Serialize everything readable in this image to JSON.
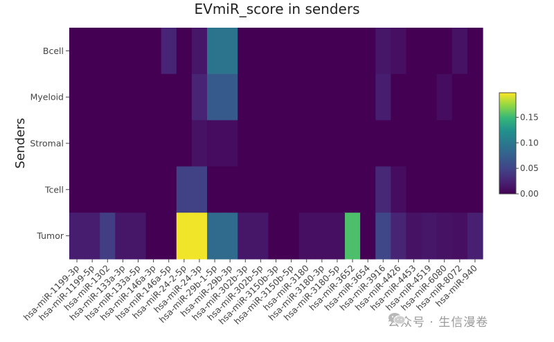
{
  "chart_data": {
    "type": "heatmap",
    "title": "EVmiR_score in senders",
    "ylabel": "Senders",
    "xlabel": "",
    "x_categories": [
      "hsa-miR-1199-3p",
      "hsa-miR-1199-5p",
      "hsa-miR-1302",
      "hsa-miR-133a-3p",
      "hsa-miR-133a-5p",
      "hsa-miR-146a-3p",
      "hsa-miR-146a-5p",
      "hsa-miR-24-2-5p",
      "hsa-miR-24-3p",
      "hsa-miR-29b-1-5p",
      "hsa-miR-29b-3p",
      "hsa-miR-302b-3p",
      "hsa-miR-302b-5p",
      "hsa-miR-3150b-3p",
      "hsa-miR-3150b-5p",
      "hsa-miR-3180",
      "hsa-miR-3180-3p",
      "hsa-miR-3180-5p",
      "hsa-miR-3652",
      "hsa-miR-3654",
      "hsa-miR-3916",
      "hsa-miR-4426",
      "hsa-miR-4453",
      "hsa-miR-4519",
      "hsa-miR-6080",
      "hsa-miR-8072",
      "hsa-miR-940"
    ],
    "x_tick_labels": [
      "hsa-miR-1199-3p",
      "hsa-miR-1199-5p",
      "hsa-miR-1302",
      "hsa-miR-133a-3p",
      "hsa-miR-133a-5p",
      "hsa-miR-146a-3p",
      "hsa-miR-146a-5p",
      "hsa-miR-24-2-5p",
      "hsa-miR-24-3p",
      "hsa-miR-29b-1-5p",
      "hsa-miR-29b-3p",
      "hsa-miR-302b-3p",
      "hsa-miR-302b-5p",
      "hsa-miR-3150b-3p",
      "hsa-miR-3150b-5p",
      "hsa-miR-3180",
      "hsa-miR-3180-3p",
      "hsa-miR-3180-5p",
      "hsa-miR-3652",
      "hsa-miR-3654",
      "hsa-miR-3916",
      "hsa-miR-4426",
      "hsa-miR-4453",
      "hsa-miR-4519",
      "hsa-miR-6080",
      "hsa-miR-8072",
      "hsa-miR-940"
    ],
    "y_categories": [
      "Bcell",
      "Myeloid",
      "Stromal",
      "Tcell",
      "Tumor"
    ],
    "values": [
      [
        0,
        0,
        0,
        0,
        0,
        0,
        0.025,
        0,
        0.015,
        0.095,
        0.095,
        0,
        0,
        0,
        0,
        0,
        0,
        0,
        0,
        0,
        0.015,
        0.01,
        0,
        0,
        0,
        0.012,
        0
      ],
      [
        0,
        0,
        0,
        0,
        0,
        0,
        0,
        0,
        0.025,
        0.07,
        0.07,
        0,
        0,
        0,
        0,
        0,
        0,
        0,
        0,
        0,
        0.02,
        0,
        0,
        0,
        0.008,
        0,
        0
      ],
      [
        0,
        0,
        0,
        0,
        0,
        0,
        0,
        0,
        0.012,
        0.008,
        0.008,
        0,
        0,
        0,
        0,
        0,
        0,
        0,
        0,
        0,
        0,
        0,
        0,
        0,
        0,
        0,
        0
      ],
      [
        0,
        0,
        0,
        0,
        0,
        0,
        0,
        0.048,
        0.048,
        0,
        0,
        0,
        0,
        0,
        0,
        0,
        0,
        0,
        0,
        0,
        0.028,
        0.008,
        0,
        0,
        0,
        0,
        0
      ],
      [
        0.02,
        0.02,
        0.045,
        0.015,
        0.015,
        0,
        0,
        0.195,
        0.195,
        0.085,
        0.085,
        0.015,
        0.015,
        0,
        0,
        0.01,
        0.01,
        0.01,
        0.155,
        0,
        0.052,
        0.025,
        0.012,
        0.015,
        0.012,
        0.01,
        0.022
      ]
    ],
    "zlim": [
      0,
      0.198
    ],
    "colorscale": "viridis",
    "colorbar": {
      "ticks": [
        0,
        0.05,
        0.1,
        0.15
      ],
      "tick_labels": [
        "0.00",
        "0.05",
        "0.10",
        "0.15"
      ]
    },
    "grid": false,
    "legend": "none"
  },
  "watermark": {
    "text": "公众号 · 生信漫卷",
    "icon": "wechat-icon",
    "color": "#9a9a9a"
  }
}
